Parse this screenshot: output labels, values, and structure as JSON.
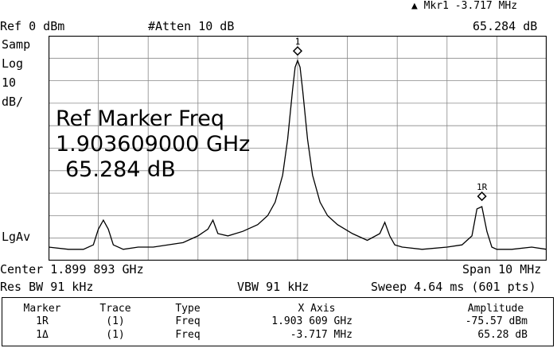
{
  "header": {
    "delta_marker": "▲ Mkr1  -3.717 MHz",
    "ref_level": "Ref 0 dBm",
    "atten": "#Atten 10 dB",
    "marker_value": "65.284 dB"
  },
  "left_labels": {
    "detector": "Samp",
    "scale_type": "Log",
    "scale_div": "10",
    "scale_unit": "dB/",
    "avg_type": "LgAv"
  },
  "overlay": {
    "line1": "Ref Marker Freq",
    "line2": "1.903609000 GHz",
    "line3": "65.284 dB"
  },
  "markers": {
    "m1_label": "1",
    "m1r_label": "1R"
  },
  "footer": {
    "center": "Center 1.899 893 GHz",
    "span": "Span 10 MHz",
    "rbw": "Res BW 91 kHz",
    "vbw": "VBW 91 kHz",
    "sweep": "Sweep 4.64 ms (601 pts)"
  },
  "marker_table": {
    "headers": [
      "Marker",
      "Trace",
      "Type",
      "X Axis",
      "Amplitude"
    ],
    "rows": [
      [
        "1R",
        "(1)",
        "Freq",
        "1.903 609 GHz",
        "-75.57 dBm"
      ],
      [
        "1Δ",
        "(1)",
        "Freq",
        "-3.717 MHz",
        "65.28 dB"
      ]
    ]
  },
  "chart_data": {
    "type": "line",
    "x_range_mhz": [
      -5,
      5
    ],
    "y_range_dbm": [
      0,
      -100
    ],
    "grid": true,
    "series": [
      {
        "x_mhz": [
          -5.0,
          -4.6,
          -4.3,
          -4.1,
          -4.0,
          -3.9,
          -3.8,
          -3.7,
          -3.5,
          -3.2,
          -2.9,
          -2.3,
          -2.0,
          -1.8,
          -1.7,
          -1.6,
          -1.4,
          -1.1,
          -0.8,
          -0.6,
          -0.45,
          -0.3,
          -0.2,
          -0.1,
          -0.05,
          0.0,
          0.05,
          0.1,
          0.2,
          0.3,
          0.45,
          0.6,
          0.8,
          1.1,
          1.4,
          1.65,
          1.75,
          1.85,
          1.95,
          2.1,
          2.5,
          3.0,
          3.3,
          3.5,
          3.6,
          3.7,
          3.8,
          3.9,
          4.0,
          4.3,
          4.7,
          5.0
        ],
        "y_dbm": [
          -94,
          -95,
          -95,
          -93,
          -86,
          -82,
          -86,
          -93,
          -95,
          -94,
          -94,
          -92,
          -89,
          -86,
          -82,
          -88,
          -89,
          -87,
          -84,
          -80,
          -74,
          -62,
          -46,
          -24,
          -14,
          -11,
          -14,
          -24,
          -46,
          -62,
          -74,
          -80,
          -84,
          -88,
          -91,
          -88,
          -83,
          -89,
          -93,
          -94,
          -95,
          -94,
          -93,
          -89,
          -77,
          -76,
          -87,
          -94,
          -95,
          -95,
          -94,
          -95
        ]
      }
    ]
  }
}
